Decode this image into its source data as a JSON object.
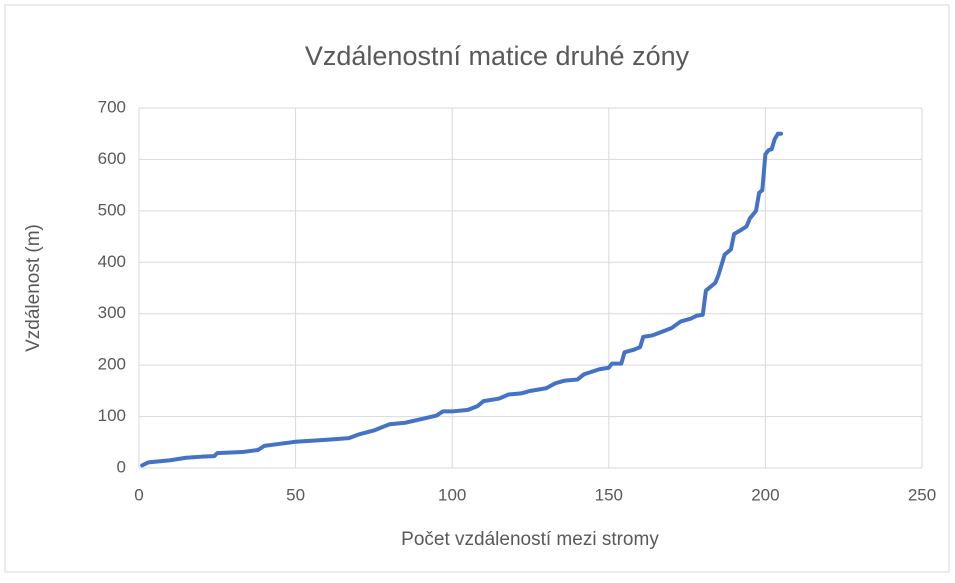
{
  "chart_data": {
    "type": "line",
    "title": "Vzdálenostní matice druhé zóny",
    "xlabel": "Počet vzdáleností mezi stromy",
    "ylabel": "Vzdálenost (m)",
    "x": [
      1,
      2,
      3,
      10,
      15,
      20,
      24,
      25,
      33,
      38,
      40,
      45,
      50,
      55,
      60,
      67,
      70,
      75,
      80,
      85,
      90,
      95,
      97,
      100,
      105,
      108,
      110,
      115,
      118,
      122,
      125,
      130,
      133,
      136,
      140,
      142,
      147,
      150,
      151,
      154,
      155,
      158,
      160,
      161,
      164,
      167,
      170,
      173,
      176,
      178,
      180,
      181,
      183,
      184,
      185,
      186,
      187,
      189,
      190,
      192,
      194,
      195,
      197,
      198,
      199,
      200,
      201,
      202,
      203,
      204,
      205
    ],
    "series": [
      {
        "name": "Vzdálenost",
        "color": "#4472c4",
        "values": [
          5,
          8,
          11,
          15,
          20,
          22,
          23,
          29,
          31,
          35,
          43,
          47,
          51,
          53,
          55,
          58,
          65,
          73,
          85,
          88,
          95,
          102,
          110,
          110,
          113,
          120,
          130,
          135,
          143,
          145,
          150,
          155,
          165,
          170,
          172,
          182,
          192,
          195,
          203,
          203,
          225,
          230,
          235,
          255,
          258,
          265,
          272,
          285,
          290,
          296,
          298,
          345,
          355,
          360,
          375,
          395,
          415,
          425,
          455,
          462,
          470,
          485,
          500,
          535,
          540,
          610,
          618,
          620,
          640,
          650,
          650
        ]
      }
    ],
    "xlim": [
      0,
      250
    ],
    "xticks": [
      0,
      50,
      100,
      150,
      200,
      250
    ],
    "ylim": [
      0,
      700
    ],
    "yticks": [
      0,
      100,
      200,
      300,
      400,
      500,
      600,
      700
    ],
    "grid": true
  }
}
